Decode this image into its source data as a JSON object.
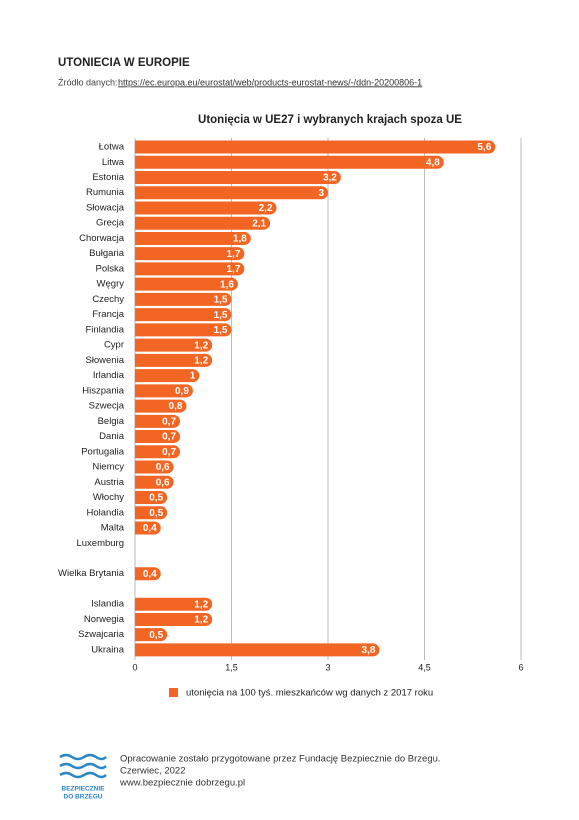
{
  "header": {
    "title": "UTONIECIA W EUROPIE",
    "source_label": "Źródło danych:",
    "source_url": "https://ec.europa.eu/eurostat/web/products-eurostat-news/-/ddn-20200806-1"
  },
  "chart_data": {
    "type": "bar",
    "orientation": "horizontal",
    "title": "Utonięcia w UE27 i wybranych krajach spoza UE",
    "categories": [
      "Łotwa",
      "Litwa",
      "Estonia",
      "Rumunia",
      "Słowacja",
      "Grecja",
      "Chorwacja",
      "Bułgaria",
      "Polska",
      "Węgry",
      "Czechy",
      "Francja",
      "Finlandia",
      "Cypr",
      "Słowenia",
      "Irlandia",
      "Hiszpania",
      "Szwecja",
      "Belgia",
      "Dania",
      "Portugalia",
      "Niemcy",
      "Austria",
      "Włochy",
      "Holandia",
      "Malta",
      "Luxemburg",
      null,
      "Wielka Brytania",
      null,
      "Islandia",
      "Norwegia",
      "Szwajcaria",
      "Ukraina"
    ],
    "series": [
      {
        "name": "utonięcia na 100 tyś. mieszkańców wg danych z 2017 roku",
        "color": "#f26522",
        "values": [
          5.6,
          4.8,
          3.2,
          3,
          2.2,
          2.1,
          1.8,
          1.7,
          1.7,
          1.6,
          1.5,
          1.5,
          1.5,
          1.2,
          1.2,
          1,
          0.9,
          0.8,
          0.7,
          0.7,
          0.7,
          0.6,
          0.6,
          0.5,
          0.5,
          0.4,
          null,
          null,
          0.4,
          null,
          1.2,
          1.2,
          0.5,
          3.8
        ],
        "value_labels": [
          "5,6",
          "4,8",
          "3,2",
          "3",
          "2,2",
          "2,1",
          "1,8",
          "1,7",
          "1,7",
          "1,6",
          "1,5",
          "1,5",
          "1,5",
          "1,2",
          "1,2",
          "1",
          "0,9",
          "0,8",
          "0,7",
          "0,7",
          "0,7",
          "0,6",
          "0,6",
          "0,5",
          "0,5",
          "0,4",
          null,
          null,
          "0,4",
          null,
          "1,2",
          "1,2",
          "0,5",
          "3,8"
        ]
      }
    ],
    "xlim": [
      0,
      6
    ],
    "xticks": [
      0,
      {
        "value": 1.5,
        "label": "1,5"
      },
      3,
      {
        "value": 4.5,
        "label": "4,5"
      },
      6
    ],
    "grid": true,
    "legend": "bottom"
  },
  "footer": {
    "logo_lines": [
      "BEZPIECZNIE",
      "DO BRZEGU"
    ],
    "lines": [
      "Opracowanie zostało przygotowane przez Fundację Bezpiecznie do Brzegu.",
      "Czerwiec, 2022",
      "www.bezpiecznie dobrzegu.pl"
    ]
  }
}
